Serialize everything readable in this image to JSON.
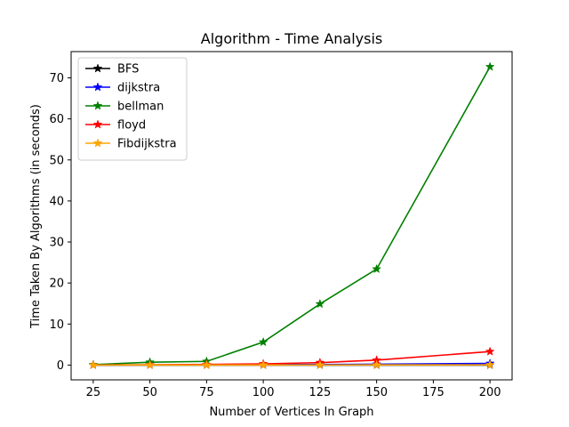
{
  "chart_data": {
    "type": "line",
    "title": "Algorithm - Time Analysis",
    "xlabel": "Number of Vertices In Graph",
    "ylabel": "Time Taken By Algorithms (in seconds)",
    "x": [
      25,
      50,
      75,
      100,
      125,
      150,
      200
    ],
    "xticks": [
      25,
      50,
      75,
      100,
      125,
      150,
      175,
      200
    ],
    "yticks": [
      0,
      10,
      20,
      30,
      40,
      50,
      60,
      70
    ],
    "xlim": [
      15.25,
      209.75
    ],
    "ylim": [
      -3.6,
      76.4
    ],
    "grid": false,
    "legend_position": "top-left",
    "marker": "star",
    "series": [
      {
        "name": "BFS",
        "color": "#000000",
        "values": [
          0.0,
          0.0,
          0.0,
          0.0,
          0.0,
          0.0,
          0.0
        ]
      },
      {
        "name": "dijkstra",
        "color": "#0000ff",
        "values": [
          0.01,
          0.03,
          0.06,
          0.1,
          0.15,
          0.2,
          0.4
        ]
      },
      {
        "name": "bellman",
        "color": "#008000",
        "values": [
          0.1,
          0.7,
          0.9,
          5.6,
          14.9,
          23.4,
          72.7
        ]
      },
      {
        "name": "floyd",
        "color": "#ff0000",
        "values": [
          0.02,
          0.08,
          0.15,
          0.3,
          0.6,
          1.2,
          3.3
        ]
      },
      {
        "name": "Fibdijkstra",
        "color": "#ffa500",
        "values": [
          0.0,
          0.01,
          0.01,
          0.02,
          0.03,
          0.04,
          0.06
        ]
      }
    ]
  }
}
